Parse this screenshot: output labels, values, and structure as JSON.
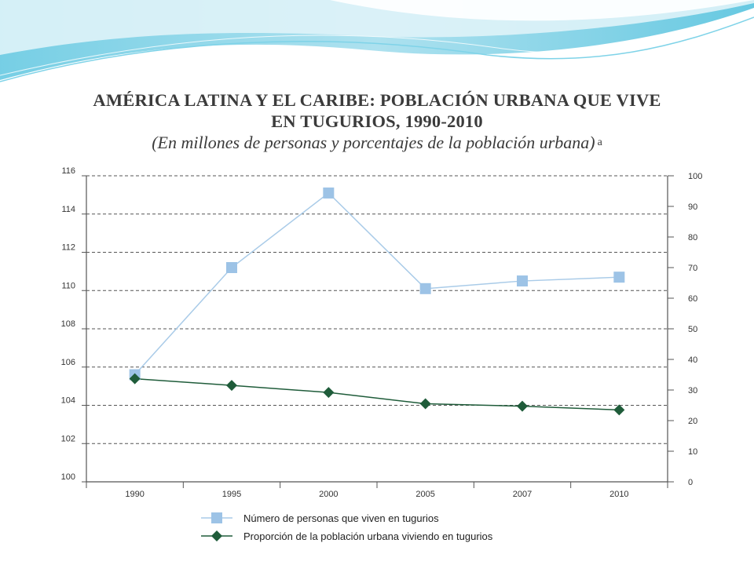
{
  "header": {
    "title_line1": "AMÉRICA LATINA Y EL CARIBE: POBLACIÓN URBANA QUE VIVE",
    "title_line2": "EN TUGURIOS, 1990-2010",
    "subtitle": "(En millones de personas y porcentajes de la población urbana)",
    "note_marker": "a"
  },
  "colors": {
    "series_people": "#9dc3e6",
    "series_people_line": "#a9cbe8",
    "series_share": "#1f5c3a",
    "axis": "#555555",
    "grid": "#555555",
    "decoration_teal": "#6fd0e6",
    "decoration_light": "#d7f1f7"
  },
  "chart_data": {
    "type": "line",
    "categories": [
      "1990",
      "1995",
      "2000",
      "2005",
      "2007",
      "2010"
    ],
    "y_left": {
      "min": 100,
      "max": 116,
      "ticks": [
        100,
        102,
        104,
        106,
        108,
        110,
        112,
        114,
        116
      ]
    },
    "y_right": {
      "min": 0,
      "max": 100,
      "ticks": [
        0,
        10,
        20,
        30,
        40,
        50,
        60,
        70,
        80,
        90,
        100
      ]
    },
    "grid": true,
    "legend_position": "bottom",
    "series": [
      {
        "name": "Número de personas que viven en tugurios",
        "axis": "left",
        "marker": "square",
        "values": [
          105.6,
          111.2,
          115.1,
          110.1,
          110.5,
          110.7
        ]
      },
      {
        "name": "Proporción de la población urbana viviendo en tugurios",
        "axis": "right",
        "marker": "diamond",
        "values": [
          33.7,
          31.5,
          29.2,
          25.5,
          24.7,
          23.5
        ]
      }
    ]
  }
}
